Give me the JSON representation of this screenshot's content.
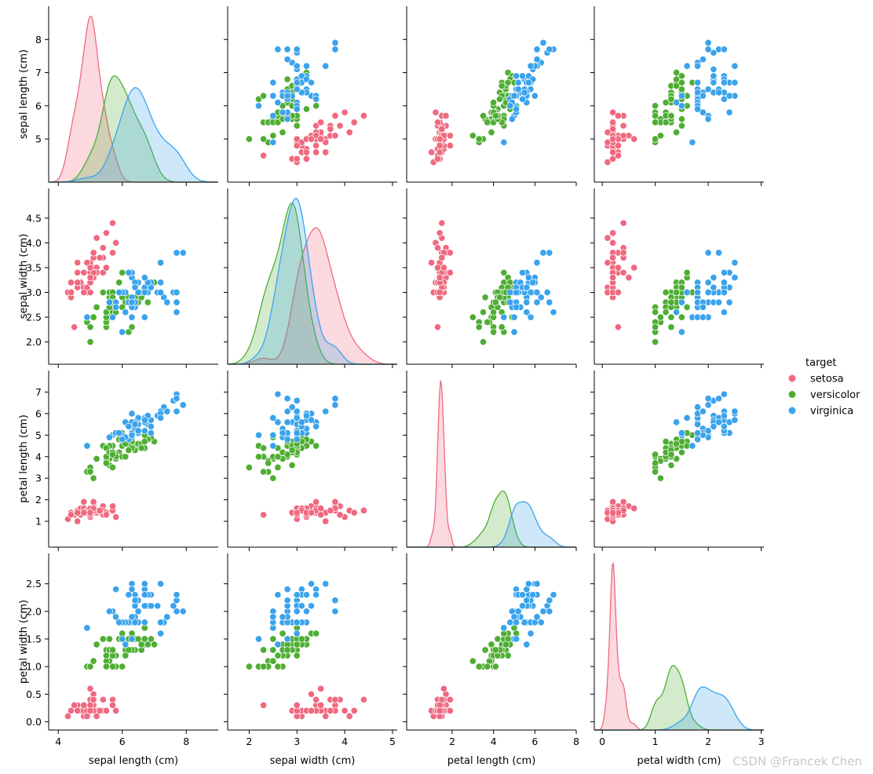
{
  "chart_data": {
    "type": "scatter",
    "subtype": "pairplot",
    "variables": [
      "sepal length (cm)",
      "sepal width (cm)",
      "petal length (cm)",
      "petal width (cm)"
    ],
    "diagonal": "kde",
    "hue_title": "target",
    "legend_placement": "right",
    "grid": false,
    "series": [
      {
        "name": "setosa",
        "color": "#f0697f",
        "data": [
          [
            5.1,
            3.5,
            1.4,
            0.2
          ],
          [
            4.9,
            3.0,
            1.4,
            0.2
          ],
          [
            4.7,
            3.2,
            1.3,
            0.2
          ],
          [
            4.6,
            3.1,
            1.5,
            0.2
          ],
          [
            5.0,
            3.6,
            1.4,
            0.2
          ],
          [
            5.4,
            3.9,
            1.7,
            0.4
          ],
          [
            4.6,
            3.4,
            1.4,
            0.3
          ],
          [
            5.0,
            3.4,
            1.5,
            0.2
          ],
          [
            4.4,
            2.9,
            1.4,
            0.2
          ],
          [
            4.9,
            3.1,
            1.5,
            0.1
          ],
          [
            5.4,
            3.7,
            1.5,
            0.2
          ],
          [
            4.8,
            3.4,
            1.6,
            0.2
          ],
          [
            4.8,
            3.0,
            1.4,
            0.1
          ],
          [
            4.3,
            3.0,
            1.1,
            0.1
          ],
          [
            5.8,
            4.0,
            1.2,
            0.2
          ],
          [
            5.7,
            4.4,
            1.5,
            0.4
          ],
          [
            5.4,
            3.9,
            1.3,
            0.4
          ],
          [
            5.1,
            3.5,
            1.4,
            0.3
          ],
          [
            5.7,
            3.8,
            1.7,
            0.3
          ],
          [
            5.1,
            3.8,
            1.5,
            0.3
          ],
          [
            5.4,
            3.4,
            1.7,
            0.2
          ],
          [
            5.1,
            3.7,
            1.5,
            0.4
          ],
          [
            4.6,
            3.6,
            1.0,
            0.2
          ],
          [
            5.1,
            3.3,
            1.7,
            0.5
          ],
          [
            4.8,
            3.4,
            1.9,
            0.2
          ],
          [
            5.0,
            3.0,
            1.6,
            0.2
          ],
          [
            5.0,
            3.4,
            1.6,
            0.4
          ],
          [
            5.2,
            3.5,
            1.5,
            0.2
          ],
          [
            5.2,
            3.4,
            1.4,
            0.2
          ],
          [
            4.7,
            3.2,
            1.6,
            0.2
          ],
          [
            4.8,
            3.1,
            1.6,
            0.2
          ],
          [
            5.4,
            3.4,
            1.5,
            0.4
          ],
          [
            5.2,
            4.1,
            1.5,
            0.1
          ],
          [
            5.5,
            4.2,
            1.4,
            0.2
          ],
          [
            4.9,
            3.1,
            1.5,
            0.2
          ],
          [
            5.0,
            3.2,
            1.2,
            0.2
          ],
          [
            5.5,
            3.5,
            1.3,
            0.2
          ],
          [
            4.9,
            3.6,
            1.4,
            0.1
          ],
          [
            4.4,
            3.0,
            1.3,
            0.2
          ],
          [
            5.1,
            3.4,
            1.5,
            0.2
          ],
          [
            5.0,
            3.5,
            1.3,
            0.3
          ],
          [
            4.5,
            2.3,
            1.3,
            0.3
          ],
          [
            4.4,
            3.2,
            1.3,
            0.2
          ],
          [
            5.0,
            3.5,
            1.6,
            0.6
          ],
          [
            5.1,
            3.8,
            1.9,
            0.4
          ],
          [
            4.8,
            3.0,
            1.4,
            0.3
          ],
          [
            5.1,
            3.8,
            1.6,
            0.2
          ],
          [
            4.6,
            3.2,
            1.4,
            0.2
          ],
          [
            5.3,
            3.7,
            1.5,
            0.2
          ],
          [
            5.0,
            3.3,
            1.4,
            0.2
          ]
        ]
      },
      {
        "name": "versicolor",
        "color": "#4eae33",
        "data": [
          [
            7.0,
            3.2,
            4.7,
            1.4
          ],
          [
            6.4,
            3.2,
            4.5,
            1.5
          ],
          [
            6.9,
            3.1,
            4.9,
            1.5
          ],
          [
            5.5,
            2.3,
            4.0,
            1.3
          ],
          [
            6.5,
            2.8,
            4.6,
            1.5
          ],
          [
            5.7,
            2.8,
            4.5,
            1.3
          ],
          [
            6.3,
            3.3,
            4.7,
            1.6
          ],
          [
            4.9,
            2.4,
            3.3,
            1.0
          ],
          [
            6.6,
            2.9,
            4.6,
            1.3
          ],
          [
            5.2,
            2.7,
            3.9,
            1.4
          ],
          [
            5.0,
            2.0,
            3.5,
            1.0
          ],
          [
            5.9,
            3.0,
            4.2,
            1.5
          ],
          [
            6.0,
            2.2,
            4.0,
            1.0
          ],
          [
            6.1,
            2.9,
            4.7,
            1.4
          ],
          [
            5.6,
            2.9,
            3.6,
            1.3
          ],
          [
            6.7,
            3.1,
            4.4,
            1.4
          ],
          [
            5.6,
            3.0,
            4.5,
            1.5
          ],
          [
            5.8,
            2.7,
            4.1,
            1.0
          ],
          [
            6.2,
            2.2,
            4.5,
            1.5
          ],
          [
            5.6,
            2.5,
            3.9,
            1.1
          ],
          [
            5.9,
            3.2,
            4.8,
            1.8
          ],
          [
            6.1,
            2.8,
            4.0,
            1.3
          ],
          [
            6.3,
            2.5,
            4.9,
            1.5
          ],
          [
            6.1,
            2.8,
            4.7,
            1.2
          ],
          [
            6.4,
            2.9,
            4.3,
            1.3
          ],
          [
            6.6,
            3.0,
            4.4,
            1.4
          ],
          [
            6.8,
            2.8,
            4.8,
            1.4
          ],
          [
            6.7,
            3.0,
            5.0,
            1.7
          ],
          [
            6.0,
            2.9,
            4.5,
            1.5
          ],
          [
            5.7,
            2.6,
            3.5,
            1.0
          ],
          [
            5.5,
            2.4,
            3.8,
            1.1
          ],
          [
            5.5,
            2.4,
            3.7,
            1.0
          ],
          [
            5.8,
            2.7,
            3.9,
            1.2
          ],
          [
            6.0,
            2.7,
            5.1,
            1.6
          ],
          [
            5.4,
            3.0,
            4.5,
            1.5
          ],
          [
            6.0,
            3.4,
            4.5,
            1.6
          ],
          [
            6.7,
            3.1,
            4.7,
            1.5
          ],
          [
            6.3,
            2.3,
            4.4,
            1.3
          ],
          [
            5.6,
            3.0,
            4.1,
            1.3
          ],
          [
            5.5,
            2.5,
            4.0,
            1.3
          ],
          [
            5.5,
            2.6,
            4.4,
            1.2
          ],
          [
            6.1,
            3.0,
            4.6,
            1.4
          ],
          [
            5.8,
            2.6,
            4.0,
            1.2
          ],
          [
            5.0,
            2.3,
            3.3,
            1.0
          ],
          [
            5.6,
            2.7,
            4.2,
            1.3
          ],
          [
            5.7,
            3.0,
            4.2,
            1.2
          ],
          [
            5.7,
            2.9,
            4.2,
            1.3
          ],
          [
            6.2,
            2.9,
            4.3,
            1.3
          ],
          [
            5.1,
            2.5,
            3.0,
            1.1
          ],
          [
            5.7,
            2.8,
            4.1,
            1.3
          ]
        ]
      },
      {
        "name": "virginica",
        "color": "#3ba3ec",
        "data": [
          [
            6.3,
            3.3,
            6.0,
            2.5
          ],
          [
            5.8,
            2.7,
            5.1,
            1.9
          ],
          [
            7.1,
            3.0,
            5.9,
            2.1
          ],
          [
            6.3,
            2.9,
            5.6,
            1.8
          ],
          [
            6.5,
            3.0,
            5.8,
            2.2
          ],
          [
            7.6,
            3.0,
            6.6,
            2.1
          ],
          [
            4.9,
            2.5,
            4.5,
            1.7
          ],
          [
            7.3,
            2.9,
            6.3,
            1.8
          ],
          [
            6.7,
            2.5,
            5.8,
            1.8
          ],
          [
            7.2,
            3.6,
            6.1,
            2.5
          ],
          [
            6.5,
            3.2,
            5.1,
            2.0
          ],
          [
            6.4,
            2.7,
            5.3,
            1.9
          ],
          [
            6.8,
            3.0,
            5.5,
            2.1
          ],
          [
            5.7,
            2.5,
            5.0,
            2.0
          ],
          [
            5.8,
            2.8,
            5.1,
            2.4
          ],
          [
            6.4,
            3.2,
            5.3,
            2.3
          ],
          [
            6.5,
            3.0,
            5.5,
            1.8
          ],
          [
            7.7,
            3.8,
            6.7,
            2.2
          ],
          [
            7.7,
            2.6,
            6.9,
            2.3
          ],
          [
            6.0,
            2.2,
            5.0,
            1.5
          ],
          [
            6.9,
            3.2,
            5.7,
            2.3
          ],
          [
            5.6,
            2.8,
            4.9,
            2.0
          ],
          [
            7.7,
            2.8,
            6.7,
            2.0
          ],
          [
            6.3,
            2.7,
            4.9,
            1.8
          ],
          [
            6.7,
            3.3,
            5.7,
            2.1
          ],
          [
            7.2,
            3.2,
            6.0,
            1.8
          ],
          [
            6.2,
            2.8,
            4.8,
            1.8
          ],
          [
            6.1,
            3.0,
            4.9,
            1.8
          ],
          [
            6.4,
            2.8,
            5.6,
            2.1
          ],
          [
            7.2,
            3.0,
            5.8,
            1.6
          ],
          [
            7.4,
            2.8,
            6.1,
            1.9
          ],
          [
            7.9,
            3.8,
            6.4,
            2.0
          ],
          [
            6.4,
            2.8,
            5.6,
            2.2
          ],
          [
            6.3,
            2.8,
            5.1,
            1.5
          ],
          [
            6.1,
            2.6,
            5.6,
            1.4
          ],
          [
            7.7,
            3.0,
            6.1,
            2.3
          ],
          [
            6.3,
            3.4,
            5.6,
            2.4
          ],
          [
            6.4,
            3.1,
            5.5,
            1.8
          ],
          [
            6.0,
            3.0,
            4.8,
            1.8
          ],
          [
            6.9,
            3.1,
            5.4,
            2.1
          ],
          [
            6.7,
            3.1,
            5.6,
            2.4
          ],
          [
            6.9,
            3.1,
            5.1,
            2.3
          ],
          [
            5.8,
            2.7,
            5.1,
            1.9
          ],
          [
            6.8,
            3.2,
            5.9,
            2.3
          ],
          [
            6.7,
            3.3,
            5.7,
            2.5
          ],
          [
            6.7,
            3.0,
            5.2,
            2.3
          ],
          [
            6.3,
            2.5,
            5.0,
            1.9
          ],
          [
            6.5,
            3.0,
            5.2,
            2.0
          ],
          [
            6.2,
            3.4,
            5.4,
            2.3
          ],
          [
            5.9,
            3.0,
            5.1,
            1.8
          ]
        ]
      }
    ],
    "axes": [
      {
        "label": "sepal length (cm)",
        "range": [
          3.7,
          9.0
        ],
        "ticks": [
          4,
          6,
          8
        ],
        "kde_ticks": [
          5,
          6,
          7,
          8
        ],
        "tick_labels": [
          "4",
          "6",
          "8"
        ],
        "kde_tick_labels": [
          "5",
          "6",
          "7",
          "8"
        ]
      },
      {
        "label": "sepal width (cm)",
        "range": [
          1.55,
          5.1
        ],
        "ticks": [
          2,
          3,
          4,
          5
        ],
        "kde_ticks": [
          2.0,
          2.5,
          3.0,
          3.5,
          4.0,
          4.5
        ],
        "tick_labels": [
          "2",
          "3",
          "4",
          "5"
        ],
        "kde_tick_labels": [
          "2.0",
          "2.5",
          "3.0",
          "3.5",
          "4.0",
          "4.5"
        ]
      },
      {
        "label": "petal length (cm)",
        "range": [
          -0.2,
          8.0
        ],
        "ticks": [
          2,
          4,
          6,
          8
        ],
        "kde_ticks": [
          1,
          2,
          3,
          4,
          5,
          6,
          7
        ],
        "tick_labels": [
          "2",
          "4",
          "6",
          "8"
        ],
        "kde_tick_labels": [
          "1",
          "2",
          "3",
          "4",
          "5",
          "6",
          "7"
        ]
      },
      {
        "label": "petal width (cm)",
        "range": [
          -0.15,
          3.05
        ],
        "ticks": [
          0,
          1,
          2,
          3
        ],
        "kde_ticks": [
          0.0,
          0.5,
          1.0,
          1.5,
          2.0,
          2.5
        ],
        "tick_labels": [
          "0",
          "1",
          "2",
          "3"
        ],
        "kde_tick_labels": [
          "0.0",
          "0.5",
          "1.0",
          "1.5",
          "2.0",
          "2.5"
        ]
      }
    ]
  },
  "watermark": "CSDN @Francek Chen"
}
